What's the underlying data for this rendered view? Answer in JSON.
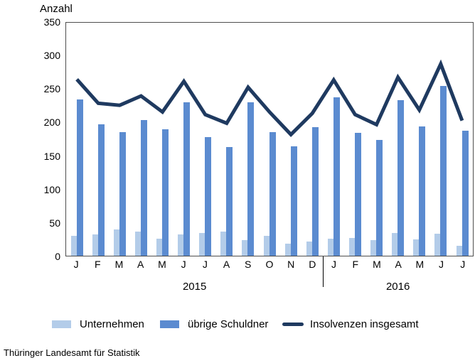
{
  "y_axis_title": "Anzahl",
  "source": "Thüringer Landesamt für Statistik",
  "colors": {
    "unternehmen": "#b3cce9",
    "uebrige_schuldner": "#5b8bd0",
    "insgesamt": "#1f3a60",
    "axis": "#4d4d4d"
  },
  "chart_data": {
    "type": "bar",
    "subtype": "grouped bars with overlay line",
    "title": "",
    "ylabel": "Anzahl",
    "xlabel": "",
    "ylim": [
      0,
      350
    ],
    "yticks": [
      0,
      50,
      100,
      150,
      200,
      250,
      300,
      350
    ],
    "grid": false,
    "legend_position": "bottom",
    "categories": [
      "J",
      "F",
      "M",
      "A",
      "M",
      "J",
      "J",
      "A",
      "S",
      "O",
      "N",
      "D",
      "J",
      "F",
      "M",
      "A",
      "M",
      "J",
      "J"
    ],
    "year_groups": [
      {
        "label": "2015",
        "count": 12
      },
      {
        "label": "2016",
        "count": 7
      }
    ],
    "series": [
      {
        "name": "Unternehmen",
        "type": "bar",
        "values": [
          30,
          32,
          40,
          36,
          26,
          32,
          34,
          36,
          23,
          30,
          18,
          21,
          26,
          27,
          23,
          34,
          25,
          33,
          15
        ]
      },
      {
        "name": "übrige Schuldner",
        "type": "bar",
        "values": [
          235,
          197,
          186,
          204,
          190,
          230,
          178,
          163,
          230,
          186,
          164,
          193,
          238,
          185,
          174,
          234,
          194,
          255,
          188
        ]
      },
      {
        "name": "Insolvenzen insgesamt",
        "type": "line",
        "values": [
          265,
          229,
          226,
          240,
          216,
          262,
          212,
          199,
          253,
          216,
          182,
          214,
          264,
          212,
          197,
          268,
          219,
          288,
          203
        ]
      }
    ]
  }
}
